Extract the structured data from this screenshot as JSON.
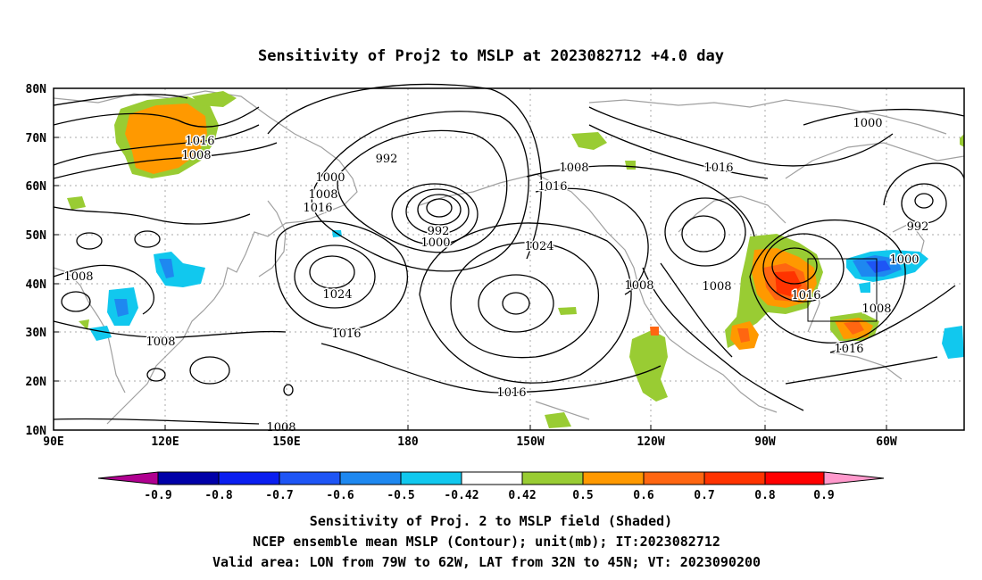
{
  "title": "Sensitivity of Proj2 to MSLP at 2023082712 +4.0 day",
  "lat_labels": [
    "80N",
    "70N",
    "60N",
    "50N",
    "40N",
    "30N",
    "20N",
    "10N"
  ],
  "lon_labels": [
    "90E",
    "120E",
    "150E",
    "180",
    "150W",
    "120W",
    "90W",
    "60W"
  ],
  "contour_labels": [
    "1016",
    "1008",
    "992",
    "1000",
    "1008",
    "1016",
    "992",
    "1000",
    "1008",
    "1016",
    "1024",
    "1024",
    "1008",
    "1016",
    "1008",
    "1008",
    "1016",
    "1000",
    "1016",
    "992",
    "1000",
    "1016",
    "1008",
    "1016",
    "1008",
    "1008"
  ],
  "colorbar": {
    "tick_labels": [
      "-0.9",
      "-0.8",
      "-0.7",
      "-0.6",
      "-0.5",
      "-0.42",
      "0.42",
      "0.5",
      "0.6",
      "0.7",
      "0.8",
      "0.9"
    ],
    "colors": [
      "#b00090",
      "#0000a8",
      "#0a1ef0",
      "#1e55f5",
      "#1e88f0",
      "#11c8ee",
      "#ffffff",
      "#99cc33",
      "#ff9900",
      "#ff6611",
      "#ff3300",
      "#ff0000",
      "#ff99cc"
    ]
  },
  "captions": [
    "Sensitivity of Proj. 2 to MSLP field (Shaded)",
    "NCEP ensemble mean MSLP (Contour); unit(mb); IT:2023082712",
    "Valid area: LON from 79W to 62W, LAT from 32N to 45N; VT: 2023090200"
  ]
}
